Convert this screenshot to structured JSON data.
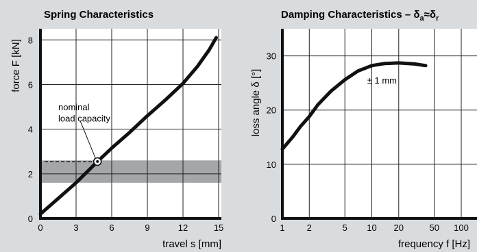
{
  "chart_data": [
    {
      "type": "line",
      "title": "Spring Characteristics",
      "xlabel": "travel s [mm]",
      "ylabel": "force F [kN]",
      "xlim": [
        0,
        15
      ],
      "ylim": [
        0,
        8.5
      ],
      "xticks": [
        0,
        3,
        6,
        9,
        12,
        15
      ],
      "yticks": [
        0,
        2,
        4,
        6,
        8
      ],
      "grid": true,
      "colors": {
        "curve": "#111111",
        "band": "#a4a7a9",
        "background": "#ffffff"
      },
      "series": [
        {
          "x": [
            0,
            1.5,
            3,
            4.8,
            6,
            7.5,
            9,
            10.5,
            12,
            13.2,
            14.2,
            14.8
          ],
          "y": [
            0.2,
            0.9,
            1.6,
            2.55,
            3.15,
            3.85,
            4.6,
            5.3,
            6.05,
            6.8,
            7.55,
            8.1
          ]
        }
      ],
      "band": {
        "ymin": 1.6,
        "ymax": 2.6
      },
      "annotations": [
        {
          "text": "nominal",
          "x": 1.5,
          "y": 5.0
        },
        {
          "text": "load capacity",
          "x": 1.5,
          "y": 4.5
        }
      ],
      "marker": {
        "x": 4.8,
        "y": 2.55
      }
    },
    {
      "type": "line",
      "title": "Damping Characteristics – δ",
      "title_sub1": "a",
      "title_mid": "≈δ",
      "title_sub2": "r",
      "xlabel": "frequency f [Hz]",
      "ylabel": "loss angle δ [°]",
      "xscale": "log",
      "xlim": [
        1,
        100
      ],
      "ylim": [
        0,
        35
      ],
      "xticks": [
        1,
        2,
        5,
        10,
        20,
        50,
        100
      ],
      "xticklabels": [
        "1",
        "2",
        "5",
        "10",
        "20",
        "50",
        "100"
      ],
      "yticks": [
        0,
        10,
        20,
        30
      ],
      "grid": true,
      "series": [
        {
          "x": [
            1,
            1.3,
            1.6,
            2,
            2.5,
            3.5,
            5,
            7,
            10,
            14,
            20,
            30,
            40
          ],
          "y": [
            12.8,
            15,
            17,
            18.8,
            21,
            23.5,
            25.6,
            27.2,
            28.2,
            28.6,
            28.7,
            28.5,
            28.2
          ]
        }
      ],
      "annotations": [
        {
          "text": "± 1 mm",
          "x": 13,
          "y": 25.5
        }
      ]
    }
  ]
}
